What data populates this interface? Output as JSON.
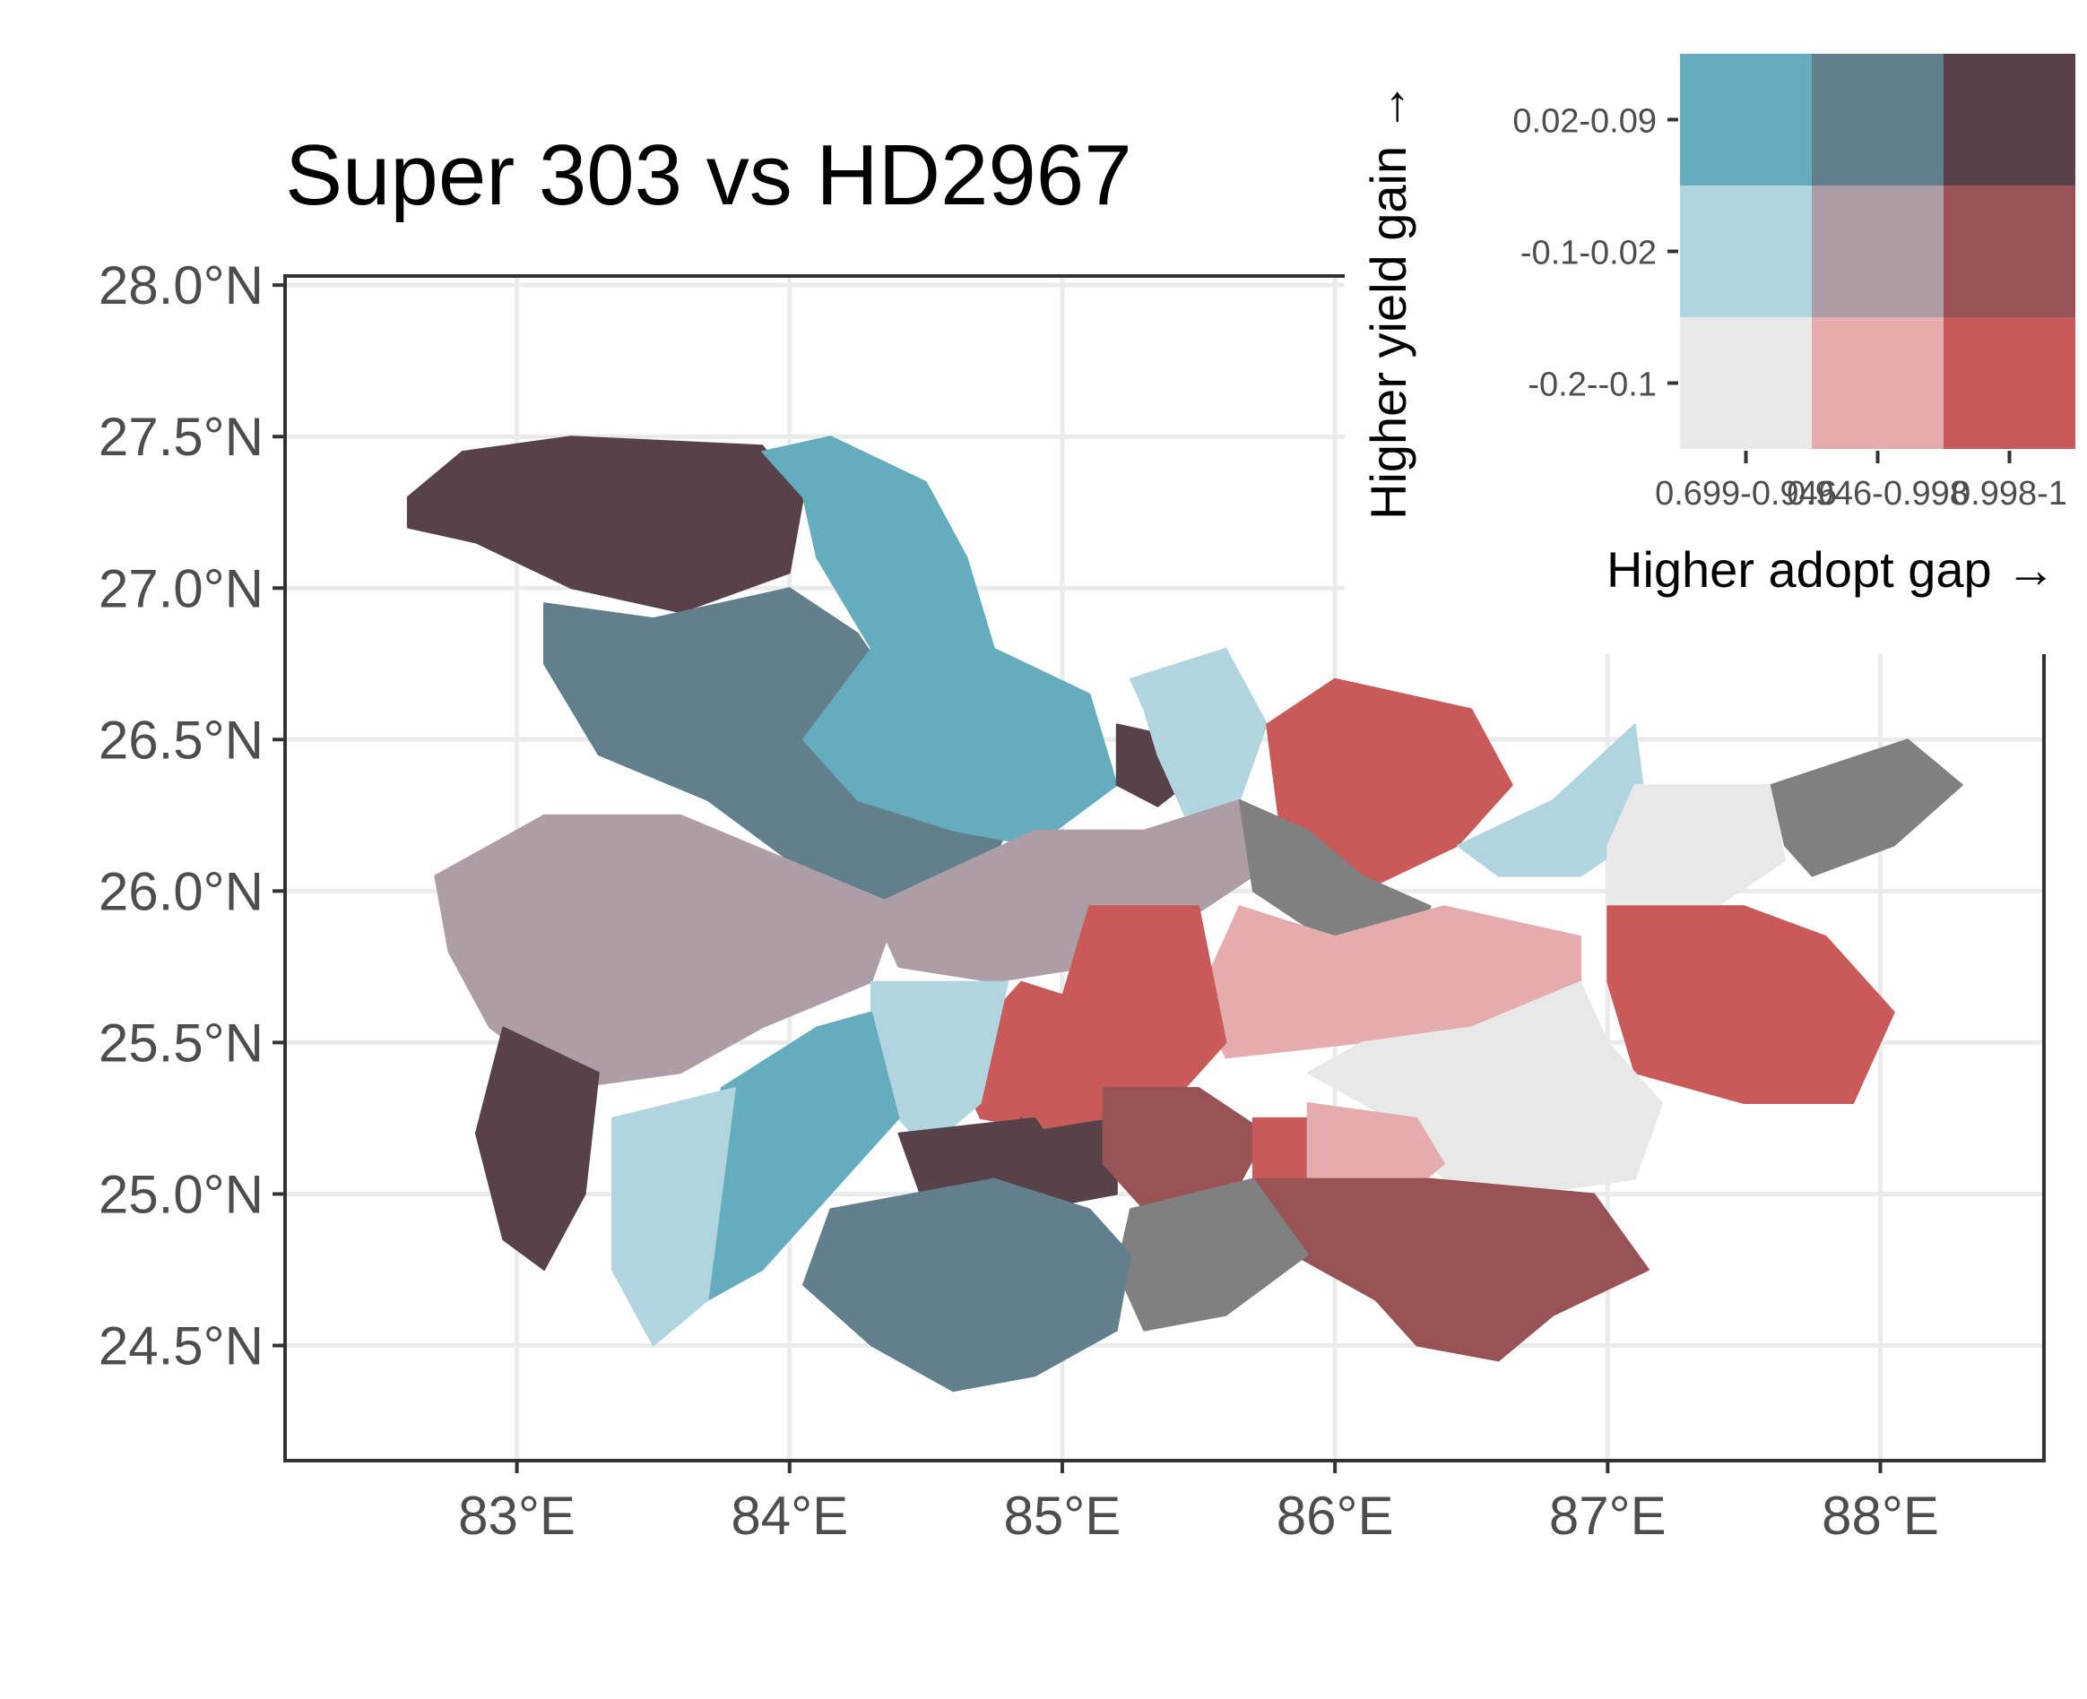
{
  "title": "Super 303 vs HD2967",
  "map": {
    "x_axis": {
      "unit": "longitude",
      "range": [
        82.15,
        88.6
      ],
      "ticks": [
        {
          "value": 83,
          "label": "83°E"
        },
        {
          "value": 84,
          "label": "84°E"
        },
        {
          "value": 85,
          "label": "85°E"
        },
        {
          "value": 86,
          "label": "86°E"
        },
        {
          "value": 87,
          "label": "87°E"
        },
        {
          "value": 88,
          "label": "88°E"
        }
      ]
    },
    "y_axis": {
      "unit": "latitude",
      "range": [
        24.12,
        28.03
      ],
      "ticks": [
        {
          "value": 24.5,
          "label": "24.5°N"
        },
        {
          "value": 25.0,
          "label": "25.0°N"
        },
        {
          "value": 25.5,
          "label": "25.5°N"
        },
        {
          "value": 26.0,
          "label": "26.0°N"
        },
        {
          "value": 26.5,
          "label": "26.5°N"
        },
        {
          "value": 27.0,
          "label": "27.0°N"
        },
        {
          "value": 27.5,
          "label": "27.5°N"
        },
        {
          "value": 28.0,
          "label": "28.0°N"
        }
      ]
    },
    "grid": true,
    "legend_placement": "top-right",
    "missing_data_color": "#808080",
    "districts": [
      {
        "class": "3-3",
        "outline": [
          [
            82.6,
            27.3
          ],
          [
            82.8,
            27.45
          ],
          [
            83.2,
            27.5
          ],
          [
            83.9,
            27.47
          ],
          [
            84.05,
            27.3
          ],
          [
            84.0,
            27.05
          ],
          [
            83.6,
            26.92
          ],
          [
            83.2,
            27.0
          ],
          [
            82.85,
            27.15
          ],
          [
            82.6,
            27.2
          ]
        ]
      },
      {
        "class": "3-2",
        "outline": [
          [
            83.1,
            26.95
          ],
          [
            83.5,
            26.9
          ],
          [
            84.0,
            27.0
          ],
          [
            84.25,
            26.85
          ],
          [
            84.4,
            26.65
          ],
          [
            84.2,
            26.35
          ],
          [
            83.7,
            26.3
          ],
          [
            83.3,
            26.45
          ],
          [
            83.1,
            26.75
          ]
        ]
      },
      {
        "class": "3-2",
        "outline": [
          [
            83.7,
            26.3
          ],
          [
            84.2,
            26.35
          ],
          [
            84.8,
            26.2
          ],
          [
            84.65,
            25.95
          ],
          [
            84.3,
            25.95
          ],
          [
            84.0,
            26.1
          ]
        ]
      },
      {
        "class": "3-1",
        "outline": [
          [
            83.9,
            27.45
          ],
          [
            84.15,
            27.5
          ],
          [
            84.5,
            27.35
          ],
          [
            84.65,
            27.1
          ],
          [
            84.75,
            26.8
          ],
          [
            85.1,
            26.65
          ],
          [
            85.2,
            26.35
          ],
          [
            84.9,
            26.15
          ],
          [
            84.6,
            26.2
          ],
          [
            84.25,
            26.3
          ],
          [
            84.05,
            26.5
          ],
          [
            84.3,
            26.8
          ],
          [
            84.1,
            27.1
          ],
          [
            84.05,
            27.3
          ]
        ]
      },
      {
        "class": "3-3",
        "outline": [
          [
            85.2,
            26.55
          ],
          [
            85.45,
            26.5
          ],
          [
            85.45,
            26.35
          ],
          [
            85.35,
            26.28
          ],
          [
            85.2,
            26.35
          ]
        ]
      },
      {
        "class": "2-1",
        "outline": [
          [
            85.25,
            26.7
          ],
          [
            85.6,
            26.8
          ],
          [
            85.75,
            26.55
          ],
          [
            85.65,
            26.3
          ],
          [
            85.45,
            26.25
          ],
          [
            85.35,
            26.45
          ],
          [
            85.3,
            26.6
          ]
        ]
      },
      {
        "class": "1-3",
        "outline": [
          [
            85.75,
            26.55
          ],
          [
            86.0,
            26.7
          ],
          [
            86.5,
            26.6
          ],
          [
            86.65,
            26.35
          ],
          [
            86.45,
            26.15
          ],
          [
            86.1,
            26.0
          ],
          [
            85.8,
            26.2
          ]
        ]
      },
      {
        "class": "2-1",
        "outline": [
          [
            86.45,
            26.15
          ],
          [
            86.8,
            26.3
          ],
          [
            87.1,
            26.55
          ],
          [
            87.15,
            26.2
          ],
          [
            86.9,
            26.05
          ],
          [
            86.6,
            26.05
          ]
        ]
      },
      {
        "class": "1-1",
        "outline": [
          [
            87.1,
            26.35
          ],
          [
            87.6,
            26.35
          ],
          [
            87.65,
            26.1
          ],
          [
            87.4,
            25.95
          ],
          [
            87.0,
            25.95
          ],
          [
            87.0,
            26.15
          ]
        ]
      },
      {
        "class": "na",
        "outline": [
          [
            87.6,
            26.35
          ],
          [
            88.1,
            26.5
          ],
          [
            88.3,
            26.35
          ],
          [
            88.05,
            26.15
          ],
          [
            87.75,
            26.05
          ],
          [
            87.65,
            26.15
          ]
        ]
      },
      {
        "class": "2-2",
        "outline": [
          [
            82.7,
            26.05
          ],
          [
            83.1,
            26.25
          ],
          [
            83.6,
            26.25
          ],
          [
            84.0,
            26.1
          ],
          [
            84.4,
            25.95
          ],
          [
            84.3,
            25.7
          ],
          [
            83.9,
            25.55
          ],
          [
            83.6,
            25.4
          ],
          [
            83.2,
            25.35
          ],
          [
            82.9,
            25.55
          ],
          [
            82.75,
            25.8
          ]
        ]
      },
      {
        "class": "2-2",
        "outline": [
          [
            84.3,
            25.95
          ],
          [
            84.9,
            26.2
          ],
          [
            85.3,
            26.2
          ],
          [
            85.65,
            26.3
          ],
          [
            85.7,
            26.05
          ],
          [
            85.45,
            25.9
          ],
          [
            85.1,
            25.75
          ],
          [
            84.75,
            25.7
          ],
          [
            84.4,
            25.75
          ]
        ]
      },
      {
        "class": "na",
        "outline": [
          [
            85.65,
            26.3
          ],
          [
            85.9,
            26.2
          ],
          [
            86.1,
            26.05
          ],
          [
            86.35,
            25.95
          ],
          [
            86.3,
            25.85
          ],
          [
            85.95,
            25.85
          ],
          [
            85.7,
            26.0
          ]
        ]
      },
      {
        "class": "1-2",
        "outline": [
          [
            85.65,
            25.95
          ],
          [
            86.0,
            25.85
          ],
          [
            86.4,
            25.95
          ],
          [
            86.9,
            25.85
          ],
          [
            86.9,
            25.6
          ],
          [
            86.5,
            25.55
          ],
          [
            86.1,
            25.5
          ],
          [
            85.6,
            25.45
          ],
          [
            85.5,
            25.65
          ]
        ]
      },
      {
        "class": "1-3",
        "outline": [
          [
            87.0,
            25.95
          ],
          [
            87.5,
            25.95
          ],
          [
            87.8,
            25.85
          ],
          [
            88.05,
            25.6
          ],
          [
            87.9,
            25.3
          ],
          [
            87.5,
            25.3
          ],
          [
            87.1,
            25.4
          ],
          [
            87.0,
            25.7
          ]
        ]
      },
      {
        "class": "1-1",
        "outline": [
          [
            86.1,
            25.5
          ],
          [
            86.5,
            25.55
          ],
          [
            86.9,
            25.7
          ],
          [
            87.0,
            25.5
          ],
          [
            87.2,
            25.3
          ],
          [
            87.1,
            25.05
          ],
          [
            86.7,
            25.0
          ],
          [
            86.4,
            25.05
          ],
          [
            86.2,
            25.25
          ],
          [
            85.9,
            25.4
          ]
        ]
      },
      {
        "class": "1-3",
        "outline": [
          [
            85.1,
            25.95
          ],
          [
            85.5,
            25.95
          ],
          [
            85.6,
            25.5
          ],
          [
            85.4,
            25.3
          ],
          [
            85.1,
            25.4
          ],
          [
            85.0,
            25.65
          ]
        ]
      },
      {
        "class": "1-3",
        "outline": [
          [
            84.85,
            25.7
          ],
          [
            85.2,
            25.6
          ],
          [
            85.3,
            25.3
          ],
          [
            85.0,
            25.2
          ],
          [
            84.7,
            25.25
          ],
          [
            84.6,
            25.45
          ]
        ]
      },
      {
        "class": "2-1",
        "outline": [
          [
            84.3,
            25.7
          ],
          [
            84.8,
            25.7
          ],
          [
            84.7,
            25.3
          ],
          [
            84.5,
            25.15
          ],
          [
            84.35,
            25.3
          ],
          [
            84.3,
            25.5
          ]
        ]
      },
      {
        "class": "3-1",
        "outline": [
          [
            83.75,
            25.35
          ],
          [
            84.1,
            25.55
          ],
          [
            84.3,
            25.6
          ],
          [
            84.4,
            25.25
          ],
          [
            84.15,
            25.0
          ],
          [
            83.9,
            24.75
          ],
          [
            83.7,
            24.65
          ],
          [
            83.75,
            25.0
          ]
        ]
      },
      {
        "class": "2-1",
        "outline": [
          [
            83.35,
            25.25
          ],
          [
            83.8,
            25.35
          ],
          [
            83.75,
            25.0
          ],
          [
            83.7,
            24.65
          ],
          [
            83.5,
            24.5
          ],
          [
            83.35,
            24.75
          ]
        ]
      },
      {
        "class": "3-3",
        "outline": [
          [
            82.95,
            25.55
          ],
          [
            83.3,
            25.4
          ],
          [
            83.25,
            25.0
          ],
          [
            83.1,
            24.75
          ],
          [
            82.95,
            24.85
          ],
          [
            82.85,
            25.2
          ]
        ]
      },
      {
        "class": "3-3",
        "outline": [
          [
            84.4,
            25.2
          ],
          [
            84.9,
            25.25
          ],
          [
            85.05,
            25.05
          ],
          [
            84.8,
            24.85
          ],
          [
            84.5,
            24.95
          ]
        ]
      },
      {
        "class": "3-3",
        "outline": [
          [
            84.85,
            25.25
          ],
          [
            85.0,
            25.0
          ],
          [
            84.85,
            24.9
          ]
        ]
      },
      {
        "class": "3-3",
        "outline": [
          [
            84.85,
            25.2
          ],
          [
            85.2,
            25.25
          ],
          [
            85.2,
            25.0
          ],
          [
            84.9,
            24.95
          ]
        ]
      },
      {
        "class": "2-3",
        "outline": [
          [
            85.15,
            25.35
          ],
          [
            85.5,
            25.35
          ],
          [
            85.75,
            25.2
          ],
          [
            85.6,
            24.95
          ],
          [
            85.3,
            24.95
          ],
          [
            85.15,
            25.1
          ]
        ]
      },
      {
        "class": "1-3",
        "outline": [
          [
            85.7,
            25.25
          ],
          [
            85.95,
            25.25
          ],
          [
            85.95,
            25.0
          ],
          [
            85.7,
            25.0
          ]
        ]
      },
      {
        "class": "1-2",
        "outline": [
          [
            85.9,
            25.3
          ],
          [
            86.3,
            25.25
          ],
          [
            86.4,
            25.1
          ],
          [
            86.2,
            24.95
          ],
          [
            85.9,
            25.0
          ]
        ]
      },
      {
        "class": "2-3",
        "outline": [
          [
            85.7,
            25.05
          ],
          [
            86.35,
            25.05
          ],
          [
            86.95,
            25.0
          ],
          [
            87.15,
            24.75
          ],
          [
            86.8,
            24.6
          ],
          [
            86.6,
            24.45
          ],
          [
            86.3,
            24.5
          ],
          [
            86.15,
            24.65
          ],
          [
            85.85,
            24.8
          ]
        ]
      },
      {
        "class": "na",
        "outline": [
          [
            85.25,
            24.95
          ],
          [
            85.7,
            25.05
          ],
          [
            85.9,
            24.8
          ],
          [
            85.6,
            24.6
          ],
          [
            85.3,
            24.55
          ],
          [
            85.2,
            24.75
          ]
        ]
      },
      {
        "class": "3-2",
        "outline": [
          [
            84.15,
            24.95
          ],
          [
            84.75,
            25.05
          ],
          [
            85.1,
            24.95
          ],
          [
            85.25,
            24.8
          ],
          [
            85.2,
            24.55
          ],
          [
            84.9,
            24.4
          ],
          [
            84.6,
            24.35
          ],
          [
            84.3,
            24.5
          ],
          [
            84.05,
            24.7
          ]
        ]
      }
    ]
  },
  "legend": {
    "y_title": "Higher yield gain →",
    "x_title": "Higher adopt gap →",
    "rows": [
      "0.02-0.09",
      "-0.1-0.02",
      "-0.2--0.1"
    ],
    "columns": [
      "0.699-0.946",
      "0.946-0.998",
      "0.998-1"
    ],
    "colors": [
      [
        "#64acbe",
        "#627f8c",
        "#574249"
      ],
      [
        "#b0d5df",
        "#ad9ea5",
        "#985356"
      ],
      [
        "#e8e8e8",
        "#e4acac",
        "#c85a5a"
      ]
    ]
  }
}
